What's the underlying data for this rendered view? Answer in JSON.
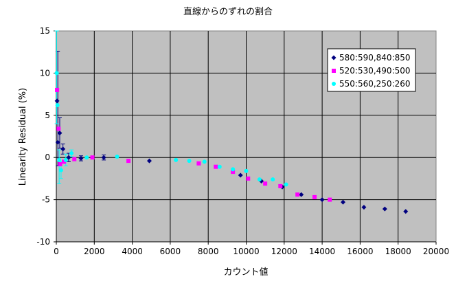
{
  "chart_data": {
    "type": "scatter",
    "title": "直線からのずれの割合",
    "xlabel": "カウント値",
    "ylabel": "Linearity Residual (%)",
    "xlim": [
      0,
      20000
    ],
    "ylim": [
      -10,
      15
    ],
    "x_ticks": [
      0,
      2000,
      4000,
      6000,
      8000,
      10000,
      12000,
      14000,
      16000,
      18000,
      20000
    ],
    "y_ticks": [
      -10,
      -5,
      0,
      5,
      10,
      15
    ],
    "grid": true,
    "plot_background": "#c0c0c0",
    "legend_position": "top-right",
    "series": [
      {
        "name": "580:590,840:850",
        "color": "#000080",
        "marker": "diamond",
        "points": [
          {
            "x": 40,
            "y": 6.7
          },
          {
            "x": 80,
            "y": 1.8
          },
          {
            "x": 180,
            "y": 2.9
          },
          {
            "x": 350,
            "y": 1.0
          },
          {
            "x": 650,
            "y": 0.0
          },
          {
            "x": 1300,
            "y": -0.1
          },
          {
            "x": 2500,
            "y": 0.0
          },
          {
            "x": 4900,
            "y": -0.4
          },
          {
            "x": 9700,
            "y": -2.1
          },
          {
            "x": 10800,
            "y": -2.8
          },
          {
            "x": 11900,
            "y": -3.5
          },
          {
            "x": 12900,
            "y": -4.4
          },
          {
            "x": 14000,
            "y": -5.0
          },
          {
            "x": 15100,
            "y": -5.3
          },
          {
            "x": 16200,
            "y": -5.9
          },
          {
            "x": 17300,
            "y": -6.1
          },
          {
            "x": 18400,
            "y": -6.4
          }
        ]
      },
      {
        "name": "520:530,490:500",
        "color": "#ff00ff",
        "marker": "square",
        "points": [
          {
            "x": 40,
            "y": 8.0
          },
          {
            "x": 120,
            "y": 3.4
          },
          {
            "x": 200,
            "y": -0.8
          },
          {
            "x": 400,
            "y": -0.5
          },
          {
            "x": 950,
            "y": -0.2
          },
          {
            "x": 1900,
            "y": 0.0
          },
          {
            "x": 3800,
            "y": -0.4
          },
          {
            "x": 7500,
            "y": -0.7
          },
          {
            "x": 8400,
            "y": -1.1
          },
          {
            "x": 9300,
            "y": -1.7
          },
          {
            "x": 10100,
            "y": -2.5
          },
          {
            "x": 11000,
            "y": -3.1
          },
          {
            "x": 11800,
            "y": -3.4
          },
          {
            "x": 12700,
            "y": -4.4
          },
          {
            "x": 13600,
            "y": -4.7
          },
          {
            "x": 14400,
            "y": -5.0
          }
        ]
      },
      {
        "name": "550:560,250:260",
        "color": "#00ffff",
        "marker": "circle",
        "points": [
          {
            "x": 20,
            "y": 10.0
          },
          {
            "x": 60,
            "y": 6.2
          },
          {
            "x": 150,
            "y": -0.3
          },
          {
            "x": 250,
            "y": -1.5
          },
          {
            "x": 500,
            "y": -0.3
          },
          {
            "x": 800,
            "y": 0.5
          },
          {
            "x": 1600,
            "y": 0.0
          },
          {
            "x": 3200,
            "y": 0.1
          },
          {
            "x": 6300,
            "y": -0.3
          },
          {
            "x": 7000,
            "y": -0.4
          },
          {
            "x": 7800,
            "y": -0.5
          },
          {
            "x": 8600,
            "y": -1.1
          },
          {
            "x": 9300,
            "y": -1.4
          },
          {
            "x": 10000,
            "y": -1.6
          },
          {
            "x": 10700,
            "y": -2.6
          },
          {
            "x": 11400,
            "y": -2.6
          },
          {
            "x": 12100,
            "y": -3.2
          }
        ]
      }
    ],
    "error_bars": [
      {
        "series": 0,
        "x": 80,
        "y_low": -1.0,
        "y_high": 12.6
      },
      {
        "series": 0,
        "x": 180,
        "y_low": 1.1,
        "y_high": 4.7
      },
      {
        "series": 0,
        "x": 350,
        "y_low": 0.4,
        "y_high": 1.6
      },
      {
        "series": 0,
        "x": 650,
        "y_low": -0.5,
        "y_high": 0.5
      },
      {
        "series": 0,
        "x": 1300,
        "y_low": -0.4,
        "y_high": 0.2
      },
      {
        "series": 0,
        "x": 2500,
        "y_low": -0.3,
        "y_high": 0.3
      },
      {
        "series": 2,
        "x": 20,
        "y_low": 4.0,
        "y_high": 15.0
      },
      {
        "series": 2,
        "x": 150,
        "y_low": -3.1,
        "y_high": 0.9
      },
      {
        "series": 2,
        "x": 250,
        "y_low": -2.5,
        "y_high": -0.5
      },
      {
        "series": 2,
        "x": 500,
        "y_low": -1.0,
        "y_high": 0.4
      },
      {
        "series": 2,
        "x": 800,
        "y_low": 0.1,
        "y_high": 0.9
      }
    ]
  }
}
